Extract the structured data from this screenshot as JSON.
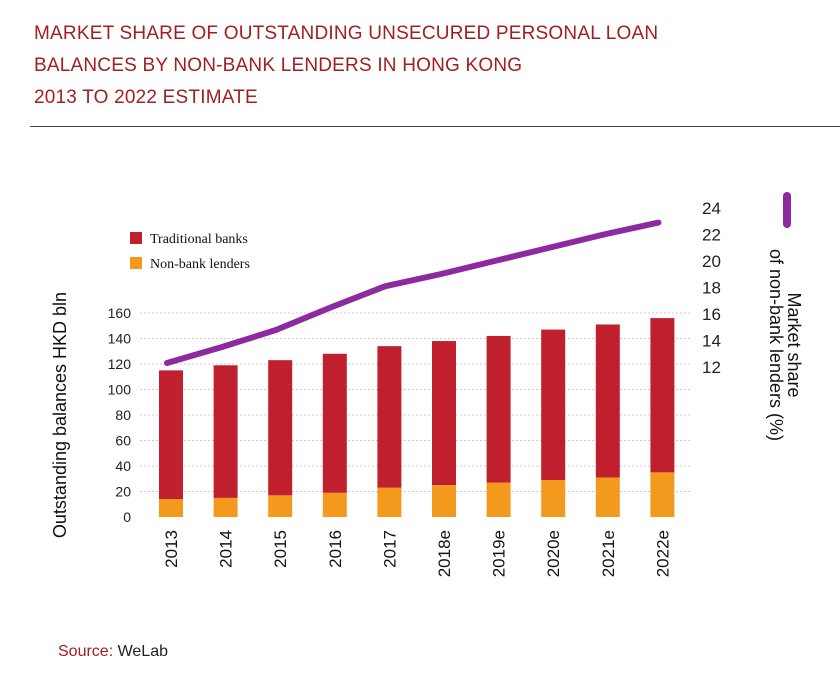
{
  "title_lines": [
    "MARKET SHARE OF OUTSTANDING UNSECURED PERSONAL LOAN",
    "BALANCES BY NON-BANK LENDERS IN HONG KONG",
    "2013 TO 2022 ESTIMATE"
  ],
  "source": {
    "label": "Source:",
    "value": "WeLab"
  },
  "colors": {
    "title": "#a01f24",
    "traditional_banks": "#c0202d",
    "non_bank_lenders": "#f39a1e",
    "market_share_line": "#8e2aa0",
    "grid": "#cccccc"
  },
  "chart_data": {
    "type": "bar",
    "stacked": true,
    "categories": [
      "2013",
      "2014",
      "2015",
      "2016",
      "2017",
      "2018e",
      "2019e",
      "2020e",
      "2021e",
      "2022e"
    ],
    "series": [
      {
        "name": "Non-bank lenders",
        "values": [
          14,
          15,
          17,
          19,
          23,
          25,
          27,
          29,
          31,
          35
        ]
      },
      {
        "name": "Traditional banks",
        "values": [
          101,
          104,
          106,
          109,
          111,
          113,
          115,
          118,
          120,
          121
        ]
      }
    ],
    "line_series": {
      "values": [
        12.3,
        13.5,
        14.8,
        16.5,
        18.1,
        19,
        20,
        21,
        22,
        22.9
      ]
    },
    "ylabel": "Outstanding balances HKD bln",
    "y2label": "Market share of non-bank lenders (%)",
    "ylim": [
      0,
      160
    ],
    "yticks": [
      "0",
      "20",
      "40",
      "60",
      "80",
      "100",
      "120",
      "140",
      "160"
    ],
    "y2lim": [
      12,
      24
    ],
    "y2ticks": [
      "12",
      "14",
      "16",
      "18",
      "20",
      "22",
      "24"
    ],
    "grid": true,
    "legend": {
      "placement": "top-left",
      "entries": [
        "Traditional banks",
        "Non-bank lenders"
      ],
      "line_entry_placement": "top-right"
    }
  }
}
